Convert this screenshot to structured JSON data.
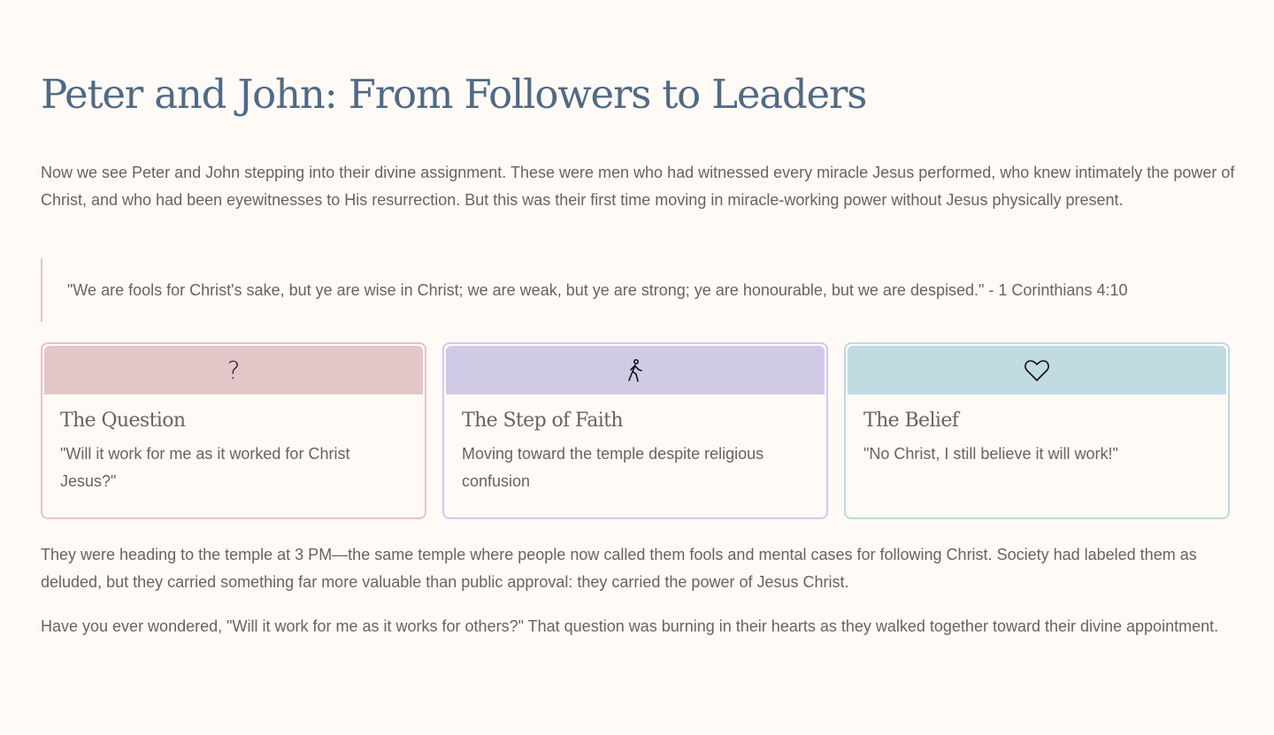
{
  "title": "Peter and John: From Followers to Leaders",
  "intro": "Now we see Peter and John stepping into their divine assignment. These were men who had witnessed every miracle Jesus performed, who knew intimately the power of Christ, and who had been eyewitnesses to His resurrection. But this was their first time moving in miracle-working power without Jesus physically present.",
  "quote": "\"We are fools for Christ's sake, but ye are wise in Christ; we are weak, but ye are strong; ye are honourable, but we are despised.\" - 1 Corinthians 4:10",
  "cards": [
    {
      "icon": "question-mark-icon",
      "title": "The Question",
      "text": "\"Will it work for me as it worked for Christ Jesus?\"",
      "border": "#e3c4c6",
      "band": "#e3c7c8"
    },
    {
      "icon": "walking-person-icon",
      "title": "The Step of Faith",
      "text": "Moving toward the temple despite religious confusion",
      "border": "#d0c8f0",
      "band": "#d1cae6"
    },
    {
      "icon": "heart-icon",
      "title": "The Belief",
      "text": "\"No Christ, I still believe it will work!\"",
      "border": "#b7dce3",
      "band": "#c0dbe1"
    }
  ],
  "para2": "They were heading to the temple at 3 PM—the same temple where people now called them fools and mental cases for following Christ. Society had labeled them as deluded, but they carried something far more valuable than public approval: they carried the power of Jesus Christ.",
  "para3": "Have you ever wondered, \"Will it work for me as it works for others?\" That question was burning in their hearts as they walked together toward their divine appointment."
}
